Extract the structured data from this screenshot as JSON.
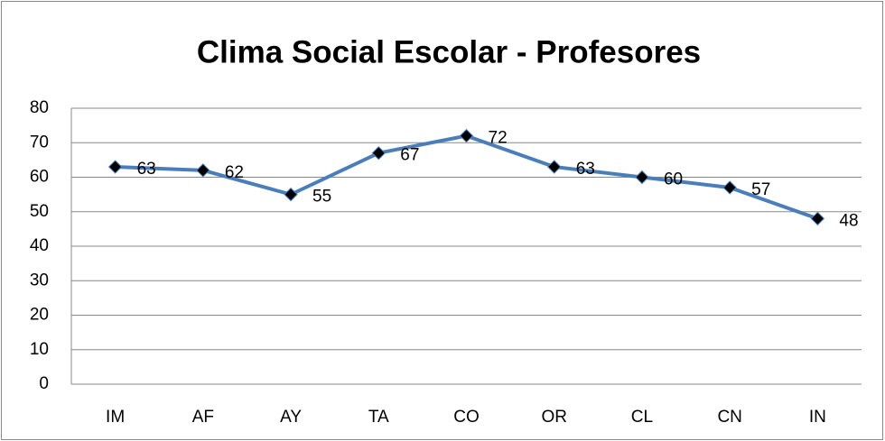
{
  "chart_data": {
    "type": "line",
    "title": "Clima Social Escolar - Profesores",
    "categories": [
      "IM",
      "AF",
      "AY",
      "TA",
      "CO",
      "OR",
      "CL",
      "CN",
      "IN"
    ],
    "series": [
      {
        "name": "Profesores",
        "color": "#4a7ebb",
        "values": [
          63,
          62,
          55,
          67,
          72,
          63,
          60,
          57,
          48
        ]
      }
    ],
    "ylim": [
      0,
      80
    ],
    "yticks": [
      0,
      10,
      20,
      30,
      40,
      50,
      60,
      70,
      80
    ],
    "grid": true,
    "data_labels": true
  }
}
